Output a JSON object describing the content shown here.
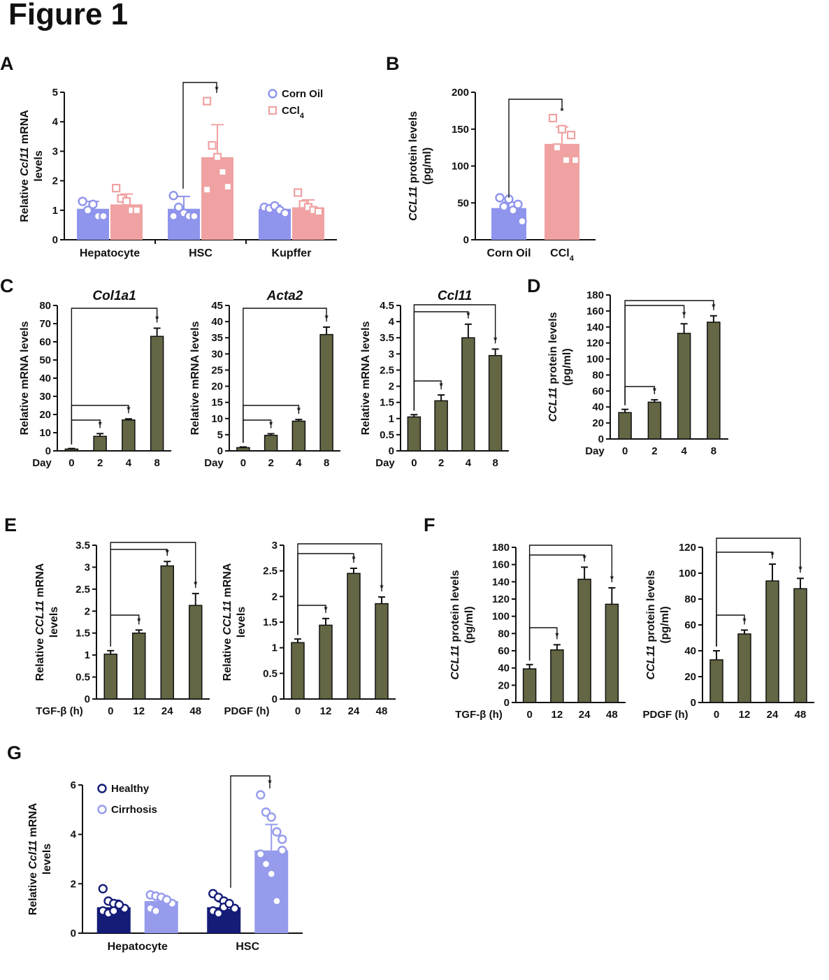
{
  "figure_title": "Figure 1",
  "colors": {
    "corn_oil": "#8f94ec",
    "ccl4": "#f0a2a2",
    "olive": "#646644",
    "healthy": "#141c78",
    "cirrhosis": "#969bec"
  },
  "chart_data": [
    {
      "panel": "A",
      "type": "bar",
      "ylabel_lines": [
        "Relative Ccl11 mRNA",
        "levels"
      ],
      "ylim": [
        0,
        5
      ],
      "yticks": [
        "0",
        "1",
        "2",
        "3",
        "4",
        "5"
      ],
      "categories": [
        "Hepatocyte",
        "HSC",
        "Kupffer"
      ],
      "legend": [
        "Corn Oil",
        "CCl4"
      ],
      "legend_position": "top-right",
      "series": [
        {
          "name": "Corn Oil",
          "values": [
            1.05,
            1.05,
            1.05
          ],
          "errors": [
            0.25,
            0.42,
            0.12
          ],
          "points": [
            [
              1.3,
              1.0,
              1.2,
              0.8,
              0.8
            ],
            [
              1.5,
              1.1,
              0.9,
              0.8,
              0.8,
              0.8
            ],
            [
              1.1,
              1.05,
              1.15,
              1.0,
              0.9
            ]
          ]
        },
        {
          "name": "CCl4",
          "values": [
            1.2,
            2.8,
            1.1
          ],
          "errors": [
            0.35,
            1.1,
            0.25
          ],
          "points": [
            [
              1.75,
              1.4,
              1.3,
              1.0,
              1.0
            ],
            [
              4.7,
              3.2,
              2.8,
              2.3,
              1.8,
              1.7
            ],
            [
              1.6,
              1.2,
              1.1,
              1.0,
              0.95
            ]
          ]
        }
      ],
      "significance": [
        {
          "group": "HSC",
          "mark": "*"
        }
      ]
    },
    {
      "panel": "B",
      "type": "bar",
      "ylabel_lines": [
        "CCL11 protein levels",
        "(pg/ml)"
      ],
      "ylim": [
        0,
        200
      ],
      "yticks": [
        "0",
        "50",
        "100",
        "150",
        "200"
      ],
      "categories": [
        "Corn Oil",
        "CCl4"
      ],
      "values": [
        43,
        130
      ],
      "errors": [
        8,
        23
      ],
      "points": [
        [
          57,
          55,
          48,
          45,
          40,
          25
        ],
        [
          165,
          150,
          142,
          125,
          108,
          108
        ]
      ],
      "significance": [
        {
          "from": "Corn Oil",
          "to": "CCl4",
          "mark": "*"
        }
      ]
    },
    {
      "panel": "C",
      "type": "bar",
      "title": "Col1a1",
      "ylabel": "Relative mRNA levels",
      "xprefix": "Day",
      "categories": [
        "0",
        "2",
        "4",
        "8"
      ],
      "values": [
        1,
        8,
        17,
        63
      ],
      "errors": [
        0.3,
        1.5,
        0.6,
        4.5
      ],
      "ylim": [
        0,
        80
      ],
      "yticks": [
        "0",
        "10",
        "20",
        "30",
        "40",
        "50",
        "60",
        "70",
        "80"
      ]
    },
    {
      "panel": "C",
      "type": "bar",
      "title": "Acta2",
      "ylabel": "Relative mRNA levels",
      "xprefix": "Day",
      "categories": [
        "0",
        "2",
        "4",
        "8"
      ],
      "values": [
        1,
        4.8,
        9.2,
        36
      ],
      "errors": [
        0.2,
        0.5,
        0.5,
        2.3
      ],
      "ylim": [
        0,
        45
      ],
      "yticks": [
        "0",
        "5",
        "10",
        "15",
        "20",
        "25",
        "30",
        "35",
        "40",
        "45"
      ]
    },
    {
      "panel": "C",
      "type": "bar",
      "title": "Ccl11",
      "ylabel": "Relative mRNA levels",
      "xprefix": "Day",
      "categories": [
        "0",
        "2",
        "4",
        "8"
      ],
      "values": [
        1.05,
        1.55,
        3.5,
        2.95
      ],
      "errors": [
        0.07,
        0.18,
        0.42,
        0.2
      ],
      "ylim": [
        0,
        4.5
      ],
      "yticks": [
        "0",
        "0.5",
        "1",
        "1.5",
        "2",
        "2.5",
        "3",
        "3.5",
        "4",
        "4.5"
      ]
    },
    {
      "panel": "D",
      "type": "bar",
      "ylabel_lines": [
        "CCL11 protein levels",
        "(pg/ml)"
      ],
      "xprefix": "Day",
      "categories": [
        "0",
        "2",
        "4",
        "8"
      ],
      "values": [
        33,
        46,
        132,
        146
      ],
      "errors": [
        4,
        3,
        12,
        8
      ],
      "ylim": [
        0,
        180
      ],
      "yticks": [
        "0",
        "20",
        "40",
        "60",
        "80",
        "100",
        "120",
        "140",
        "160",
        "180"
      ]
    },
    {
      "panel": "E",
      "type": "bar",
      "ylabel_lines": [
        "Relative CCL11 mRNA",
        "levels"
      ],
      "xprefix": "TGF-β (h)",
      "categories": [
        "0",
        "12",
        "24",
        "48"
      ],
      "values": [
        1.02,
        1.5,
        3.03,
        2.13
      ],
      "errors": [
        0.08,
        0.07,
        0.1,
        0.27
      ],
      "ylim": [
        0,
        3.5
      ],
      "yticks": [
        "0",
        "0.5",
        "1",
        "1.5",
        "2",
        "2.5",
        "3",
        "3.5"
      ]
    },
    {
      "panel": "E",
      "type": "bar",
      "ylabel_lines": [
        "Relative CCL11 mRNA",
        "levels"
      ],
      "xprefix": "PDGF (h)",
      "categories": [
        "0",
        "12",
        "24",
        "48"
      ],
      "values": [
        1.1,
        1.44,
        2.45,
        1.86
      ],
      "errors": [
        0.07,
        0.13,
        0.1,
        0.13
      ],
      "ylim": [
        0,
        3
      ],
      "yticks": [
        "0",
        "0.5",
        "1",
        "1.5",
        "2",
        "2.5",
        "3"
      ]
    },
    {
      "panel": "F",
      "type": "bar",
      "ylabel_lines": [
        "CCL11 protein levels",
        "(pg/ml)"
      ],
      "xprefix": "TGF-β (h)",
      "categories": [
        "0",
        "12",
        "24",
        "48"
      ],
      "values": [
        39,
        61,
        143,
        114
      ],
      "errors": [
        5,
        6,
        14,
        19
      ],
      "ylim": [
        0,
        180
      ],
      "yticks": [
        "0",
        "20",
        "40",
        "60",
        "80",
        "100",
        "120",
        "140",
        "160",
        "180"
      ]
    },
    {
      "panel": "F",
      "type": "bar",
      "ylabel_lines": [
        "CCL11 protein levels",
        "(pg/ml)"
      ],
      "xprefix": "PDGF (h)",
      "categories": [
        "0",
        "12",
        "24",
        "48"
      ],
      "values": [
        33,
        53,
        94,
        88
      ],
      "errors": [
        7,
        3,
        13,
        8
      ],
      "ylim": [
        0,
        120
      ],
      "yticks": [
        "0",
        "20",
        "40",
        "60",
        "80",
        "100",
        "120"
      ]
    },
    {
      "panel": "G",
      "type": "bar",
      "ylabel_lines": [
        "Relative Ccl11 mRNA",
        "levels"
      ],
      "ylim": [
        0,
        6
      ],
      "yticks": [
        "0",
        "2",
        "4",
        "6"
      ],
      "categories": [
        "Hepatocyte",
        "HSC"
      ],
      "legend": [
        "Healthy",
        "Cirrhosis"
      ],
      "legend_position": "top-left",
      "series": [
        {
          "name": "Healthy",
          "values": [
            1.05,
            1.05
          ],
          "errors": [
            0.28,
            0.22
          ],
          "points": [
            [
              1.8,
              1.3,
              1.2,
              1.1,
              1.0,
              0.9,
              0.8,
              0.9,
              1.15
            ],
            [
              1.6,
              1.45,
              1.3,
              1.1,
              1.0,
              0.9,
              0.8,
              1.05,
              1.2
            ]
          ]
        },
        {
          "name": "Cirrhosis",
          "values": [
            1.3,
            3.35
          ],
          "errors": [
            0.22,
            1.05
          ],
          "points": [
            [
              1.55,
              1.5,
              1.4,
              1.3,
              1.2,
              1.0,
              0.9,
              1.45,
              1.35
            ],
            [
              5.6,
              4.9,
              4.7,
              4.1,
              3.8,
              3.2,
              2.8,
              2.4,
              1.3,
              3.35
            ]
          ]
        }
      ],
      "significance": [
        {
          "group": "HSC",
          "mark": "*"
        }
      ]
    }
  ]
}
